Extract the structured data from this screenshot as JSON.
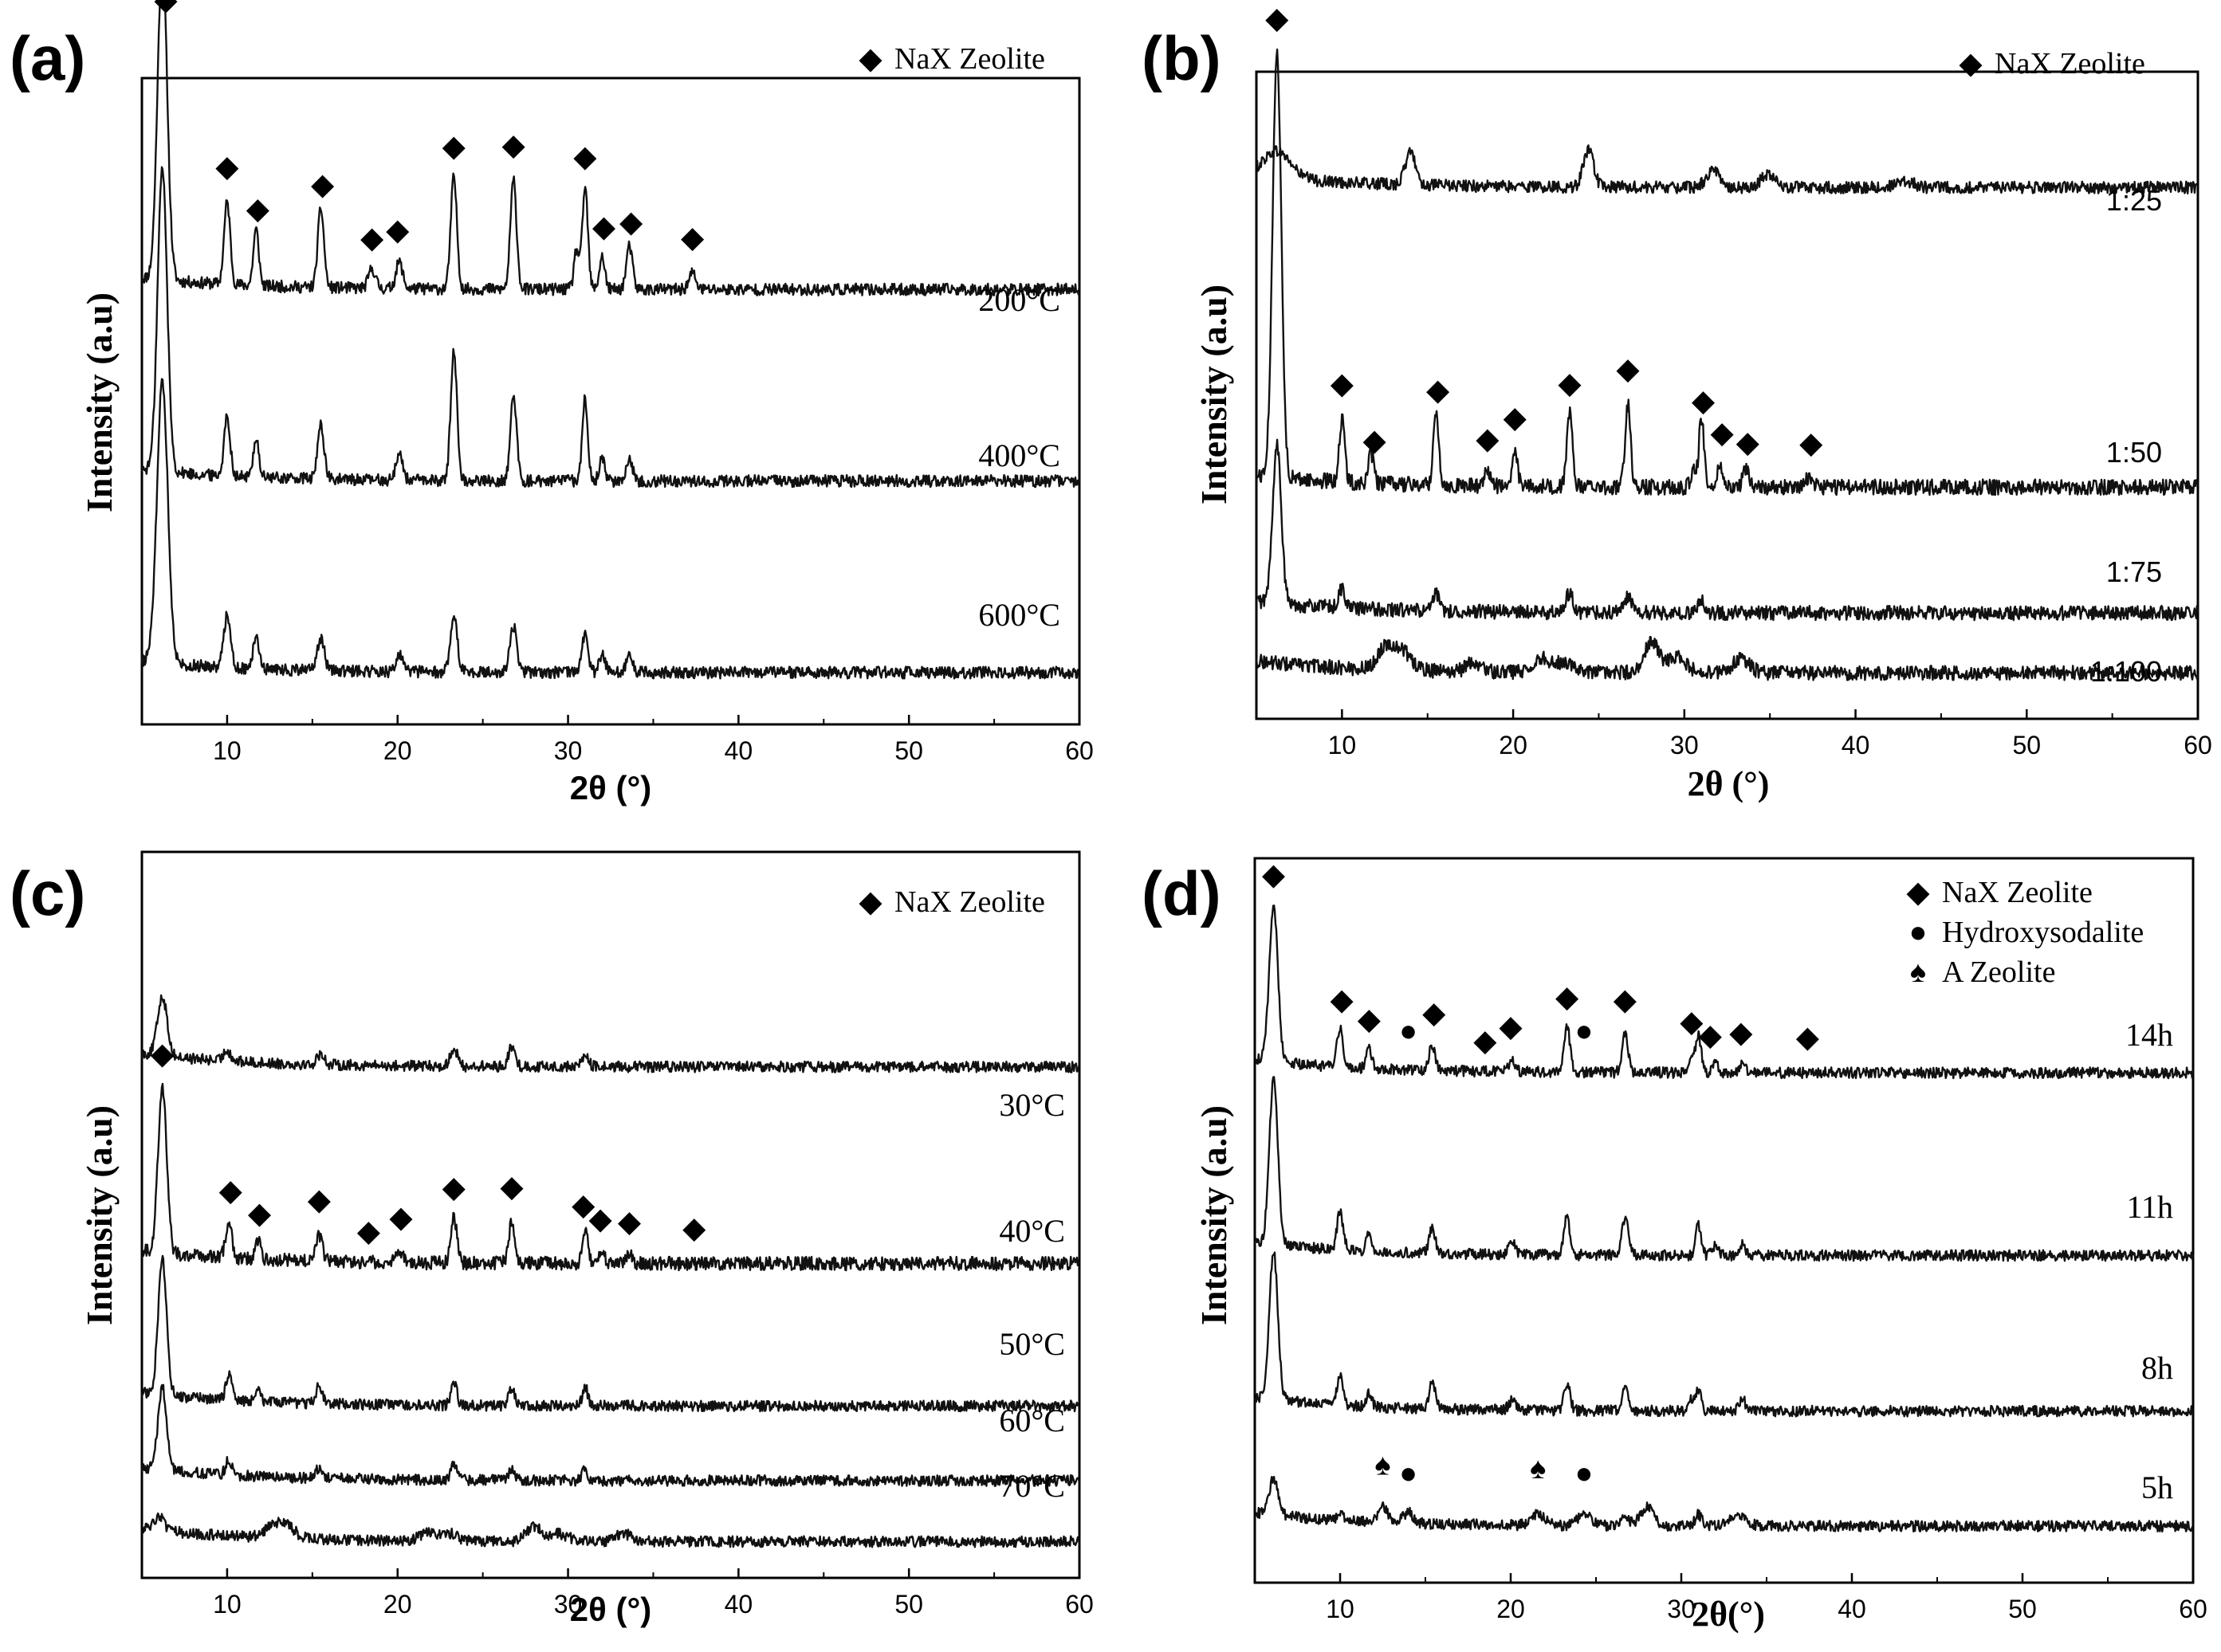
{
  "figure": {
    "background": "#ffffff",
    "line_color": "#111111"
  },
  "chart_data": [
    {
      "panel": "(a)",
      "type": "line",
      "ylabel": "Intensity (a.u)",
      "xlabel": "2θ (°)",
      "xlim": [
        5,
        60
      ],
      "xticks": [
        10,
        20,
        30,
        40,
        50,
        60
      ],
      "legend": [
        {
          "marker": "◆",
          "label": "NaX Zeolite"
        }
      ],
      "legend_position": "top-right",
      "series": [
        {
          "name": "200°C",
          "baseline": 0.7,
          "peak_scale": 0.55,
          "noise": 0.01,
          "peaks": [
            [
              6.2,
              0.98,
              0.28
            ],
            [
              10.0,
              0.25,
              0.18
            ],
            [
              11.7,
              0.17,
              0.16
            ],
            [
              15.5,
              0.24,
              0.18
            ],
            [
              18.5,
              0.06,
              0.2
            ],
            [
              20.1,
              0.08,
              0.2
            ],
            [
              23.3,
              0.34,
              0.18
            ],
            [
              26.8,
              0.33,
              0.18
            ],
            [
              30.5,
              0.12,
              0.15
            ],
            [
              31.0,
              0.31,
              0.16
            ],
            [
              32.0,
              0.1,
              0.16
            ],
            [
              33.6,
              0.13,
              0.18
            ],
            [
              37.3,
              0.05,
              0.2
            ]
          ]
        },
        {
          "name": "400°C",
          "baseline": 0.38,
          "peak_scale": 0.55,
          "noise": 0.01,
          "peaks": [
            [
              6.2,
              0.92,
              0.28
            ],
            [
              10.0,
              0.18,
              0.18
            ],
            [
              11.7,
              0.12,
              0.16
            ],
            [
              15.5,
              0.17,
              0.18
            ],
            [
              20.1,
              0.08,
              0.2
            ],
            [
              23.3,
              0.4,
              0.18
            ],
            [
              26.8,
              0.26,
              0.18
            ],
            [
              31.0,
              0.25,
              0.16
            ],
            [
              32.0,
              0.07,
              0.16
            ],
            [
              33.6,
              0.07,
              0.18
            ]
          ]
        },
        {
          "name": "600°C",
          "baseline": 0.06,
          "peak_scale": 0.55,
          "noise": 0.01,
          "peaks": [
            [
              6.2,
              0.85,
              0.32
            ],
            [
              10.0,
              0.16,
              0.2
            ],
            [
              11.7,
              0.09,
              0.18
            ],
            [
              15.5,
              0.1,
              0.2
            ],
            [
              20.1,
              0.05,
              0.2
            ],
            [
              23.3,
              0.17,
              0.2
            ],
            [
              26.8,
              0.14,
              0.2
            ],
            [
              31.0,
              0.12,
              0.18
            ],
            [
              32.0,
              0.05,
              0.18
            ],
            [
              33.6,
              0.05,
              0.18
            ]
          ]
        }
      ],
      "markers": [
        {
          "symbol": "◆",
          "x": [
            6.4,
            10.0,
            11.8,
            15.6,
            18.5,
            20.0,
            23.3,
            26.8,
            31.0,
            32.1,
            33.7,
            37.3
          ]
        }
      ]
    },
    {
      "panel": "(b)",
      "type": "line",
      "ylabel": "Intensity (a.u)",
      "xlabel": "2θ (°)",
      "xlim": [
        5,
        60
      ],
      "xticks": [
        10,
        20,
        30,
        40,
        50,
        60
      ],
      "legend": [
        {
          "marker": "◆",
          "label": "NaX Zeolite"
        }
      ],
      "legend_position": "top-right",
      "series": [
        {
          "name": "1:25",
          "baseline": 0.86,
          "peak_scale": 0.55,
          "noise": 0.01,
          "peaks": [
            [
              6.2,
              0.08,
              0.8
            ],
            [
              14.0,
              0.1,
              0.3
            ],
            [
              24.4,
              0.11,
              0.3
            ],
            [
              31.7,
              0.05,
              0.4
            ],
            [
              34.9,
              0.04,
              0.4
            ],
            [
              42.9,
              0.02,
              0.5
            ]
          ]
        },
        {
          "name": "1:50",
          "baseline": 0.36,
          "peak_scale": 0.55,
          "noise": 0.013,
          "peaks": [
            [
              6.2,
              1.3,
              0.25
            ],
            [
              10.0,
              0.19,
              0.16
            ],
            [
              11.7,
              0.09,
              0.15
            ],
            [
              15.5,
              0.22,
              0.16
            ],
            [
              18.5,
              0.05,
              0.18
            ],
            [
              20.1,
              0.1,
              0.16
            ],
            [
              23.3,
              0.22,
              0.16
            ],
            [
              26.7,
              0.25,
              0.16
            ],
            [
              30.5,
              0.05,
              0.15
            ],
            [
              31.0,
              0.21,
              0.15
            ],
            [
              32.1,
              0.07,
              0.16
            ],
            [
              33.6,
              0.05,
              0.18
            ],
            [
              37.3,
              0.03,
              0.2
            ]
          ]
        },
        {
          "name": "1:75",
          "baseline": 0.15,
          "peak_scale": 0.55,
          "noise": 0.012,
          "peaks": [
            [
              6.2,
              0.48,
              0.25
            ],
            [
              10.0,
              0.06,
              0.18
            ],
            [
              15.5,
              0.05,
              0.18
            ],
            [
              23.3,
              0.06,
              0.2
            ],
            [
              26.7,
              0.05,
              0.2
            ],
            [
              31.0,
              0.04,
              0.2
            ]
          ]
        },
        {
          "name": "1:100",
          "baseline": 0.05,
          "peak_scale": 0.55,
          "noise": 0.012,
          "peaks": [
            [
              12.6,
              0.07,
              0.5
            ],
            [
              13.6,
              0.05,
              0.5
            ],
            [
              17.7,
              0.03,
              0.4
            ],
            [
              21.7,
              0.04,
              0.5
            ],
            [
              23.0,
              0.03,
              0.5
            ],
            [
              28.1,
              0.09,
              0.45
            ],
            [
              29.6,
              0.05,
              0.5
            ],
            [
              33.3,
              0.04,
              0.5
            ]
          ]
        }
      ],
      "markers": [
        {
          "symbol": "◆",
          "x": [
            6.2,
            10.0,
            11.9,
            15.6,
            18.5,
            20.1,
            23.3,
            26.7,
            31.1,
            32.2,
            33.7,
            37.4
          ]
        }
      ]
    },
    {
      "panel": "(c)",
      "type": "line",
      "ylabel": "Intensity (a.u)",
      "xlabel": "2θ (°)",
      "xlim": [
        5,
        60
      ],
      "xticks": [
        10,
        20,
        30,
        40,
        50,
        60
      ],
      "legend": [
        {
          "marker": "◆",
          "label": "NaX Zeolite"
        }
      ],
      "legend_position": "top-right",
      "series": [
        {
          "name": "30°C",
          "baseline": 0.73,
          "peak_scale": 0.55,
          "noise": 0.008,
          "peaks": [
            [
              6.2,
              0.16,
              0.28
            ],
            [
              10.0,
              0.03,
              0.2
            ],
            [
              15.5,
              0.03,
              0.2
            ],
            [
              23.3,
              0.05,
              0.2
            ],
            [
              26.7,
              0.05,
              0.2
            ],
            [
              31.0,
              0.03,
              0.2
            ]
          ]
        },
        {
          "name": "40°C",
          "baseline": 0.44,
          "peak_scale": 0.55,
          "noise": 0.01,
          "peaks": [
            [
              6.2,
              0.45,
              0.25
            ],
            [
              10.1,
              0.1,
              0.18
            ],
            [
              11.8,
              0.05,
              0.16
            ],
            [
              15.4,
              0.07,
              0.18
            ],
            [
              20.1,
              0.03,
              0.2
            ],
            [
              23.3,
              0.12,
              0.18
            ],
            [
              26.7,
              0.11,
              0.18
            ],
            [
              31.0,
              0.09,
              0.16
            ],
            [
              32.0,
              0.03,
              0.16
            ],
            [
              33.6,
              0.03,
              0.18
            ]
          ]
        },
        {
          "name": "50°C",
          "baseline": 0.23,
          "peak_scale": 0.55,
          "noise": 0.008,
          "peaks": [
            [
              6.2,
              0.36,
              0.25
            ],
            [
              10.1,
              0.07,
              0.18
            ],
            [
              11.8,
              0.04,
              0.16
            ],
            [
              15.4,
              0.05,
              0.18
            ],
            [
              23.3,
              0.06,
              0.18
            ],
            [
              26.7,
              0.05,
              0.18
            ],
            [
              31.0,
              0.05,
              0.16
            ]
          ]
        },
        {
          "name": "60°C",
          "baseline": 0.12,
          "peak_scale": 0.55,
          "noise": 0.008,
          "peaks": [
            [
              6.2,
              0.22,
              0.25
            ],
            [
              10.1,
              0.04,
              0.18
            ],
            [
              15.4,
              0.03,
              0.18
            ],
            [
              23.3,
              0.04,
              0.18
            ],
            [
              26.7,
              0.03,
              0.18
            ],
            [
              31.0,
              0.03,
              0.16
            ]
          ]
        },
        {
          "name": "70°C",
          "baseline": 0.03,
          "peak_scale": 0.55,
          "noise": 0.008,
          "peaks": [
            [
              6.0,
              0.04,
              0.25
            ],
            [
              12.7,
              0.03,
              0.5
            ],
            [
              13.5,
              0.03,
              0.5
            ],
            [
              21.8,
              0.02,
              0.5
            ],
            [
              23.0,
              0.02,
              0.5
            ],
            [
              28.0,
              0.04,
              0.45
            ],
            [
              29.5,
              0.02,
              0.5
            ],
            [
              33.3,
              0.02,
              0.5
            ]
          ]
        }
      ],
      "markers": [
        {
          "symbol": "◆",
          "x": [
            6.2,
            10.2,
            11.9,
            15.4,
            18.3,
            20.2,
            23.3,
            26.7,
            30.9,
            31.9,
            33.6,
            37.4
          ]
        }
      ]
    },
    {
      "panel": "(d)",
      "type": "line",
      "ylabel": "Intensity (a.u)",
      "xlabel": "2θ(°)",
      "xlim": [
        5,
        60
      ],
      "xticks": [
        10,
        20,
        30,
        40,
        50,
        60
      ],
      "legend": [
        {
          "marker": "◆",
          "label": "NaX Zeolite"
        },
        {
          "marker": "●",
          "label": "Hydroxysodalite"
        },
        {
          "marker": "♠",
          "label": "A Zeolite"
        }
      ],
      "legend_position": "top-right",
      "series": [
        {
          "name": "14h",
          "baseline": 0.73,
          "peak_scale": 0.55,
          "noise": 0.008,
          "peaks": [
            [
              6.1,
              0.42,
              0.25
            ],
            [
              10.0,
              0.1,
              0.18
            ],
            [
              11.7,
              0.05,
              0.16
            ],
            [
              15.4,
              0.07,
              0.18
            ],
            [
              20.1,
              0.03,
              0.2
            ],
            [
              23.3,
              0.12,
              0.18
            ],
            [
              26.7,
              0.1,
              0.18
            ],
            [
              30.6,
              0.05,
              0.15
            ],
            [
              31.0,
              0.1,
              0.16
            ],
            [
              32.0,
              0.03,
              0.16
            ],
            [
              33.6,
              0.03,
              0.18
            ]
          ]
        },
        {
          "name": "11h",
          "baseline": 0.46,
          "peak_scale": 0.55,
          "noise": 0.008,
          "peaks": [
            [
              6.1,
              0.44,
              0.25
            ],
            [
              10.0,
              0.1,
              0.18
            ],
            [
              11.7,
              0.05,
              0.16
            ],
            [
              15.4,
              0.07,
              0.18
            ],
            [
              20.1,
              0.03,
              0.2
            ],
            [
              23.3,
              0.1,
              0.18
            ],
            [
              26.7,
              0.1,
              0.18
            ],
            [
              31.0,
              0.08,
              0.16
            ],
            [
              32.0,
              0.03,
              0.16
            ],
            [
              33.6,
              0.03,
              0.18
            ]
          ]
        },
        {
          "name": "8h",
          "baseline": 0.23,
          "peak_scale": 0.55,
          "noise": 0.008,
          "peaks": [
            [
              6.1,
              0.4,
              0.25
            ],
            [
              10.0,
              0.08,
              0.18
            ],
            [
              11.7,
              0.04,
              0.16
            ],
            [
              15.4,
              0.07,
              0.18
            ],
            [
              20.1,
              0.03,
              0.2
            ],
            [
              23.3,
              0.07,
              0.18
            ],
            [
              26.7,
              0.07,
              0.18
            ],
            [
              30.6,
              0.03,
              0.15
            ],
            [
              31.0,
              0.06,
              0.16
            ],
            [
              33.6,
              0.03,
              0.18
            ]
          ]
        },
        {
          "name": "5h",
          "baseline": 0.06,
          "peak_scale": 0.55,
          "noise": 0.008,
          "peaks": [
            [
              6.1,
              0.1,
              0.25
            ],
            [
              10.0,
              0.02,
              0.18
            ],
            [
              12.5,
              0.04,
              0.3
            ],
            [
              14.0,
              0.03,
              0.3
            ],
            [
              21.6,
              0.03,
              0.4
            ],
            [
              24.3,
              0.03,
              0.4
            ],
            [
              26.7,
              0.03,
              0.2
            ],
            [
              28.0,
              0.05,
              0.4
            ],
            [
              31.0,
              0.03,
              0.2
            ],
            [
              33.3,
              0.03,
              0.5
            ]
          ]
        }
      ],
      "markers": [
        {
          "symbol": "◆",
          "x": [
            6.1,
            10.1,
            11.7,
            15.5,
            18.5,
            20.0,
            23.3,
            26.7,
            30.6,
            31.7,
            33.5,
            37.4
          ]
        },
        {
          "symbol": "●",
          "x": [
            14.0,
            24.3,
            14.0,
            24.3
          ]
        },
        {
          "symbol": "♠",
          "x": [
            12.5,
            21.6
          ]
        }
      ]
    }
  ]
}
